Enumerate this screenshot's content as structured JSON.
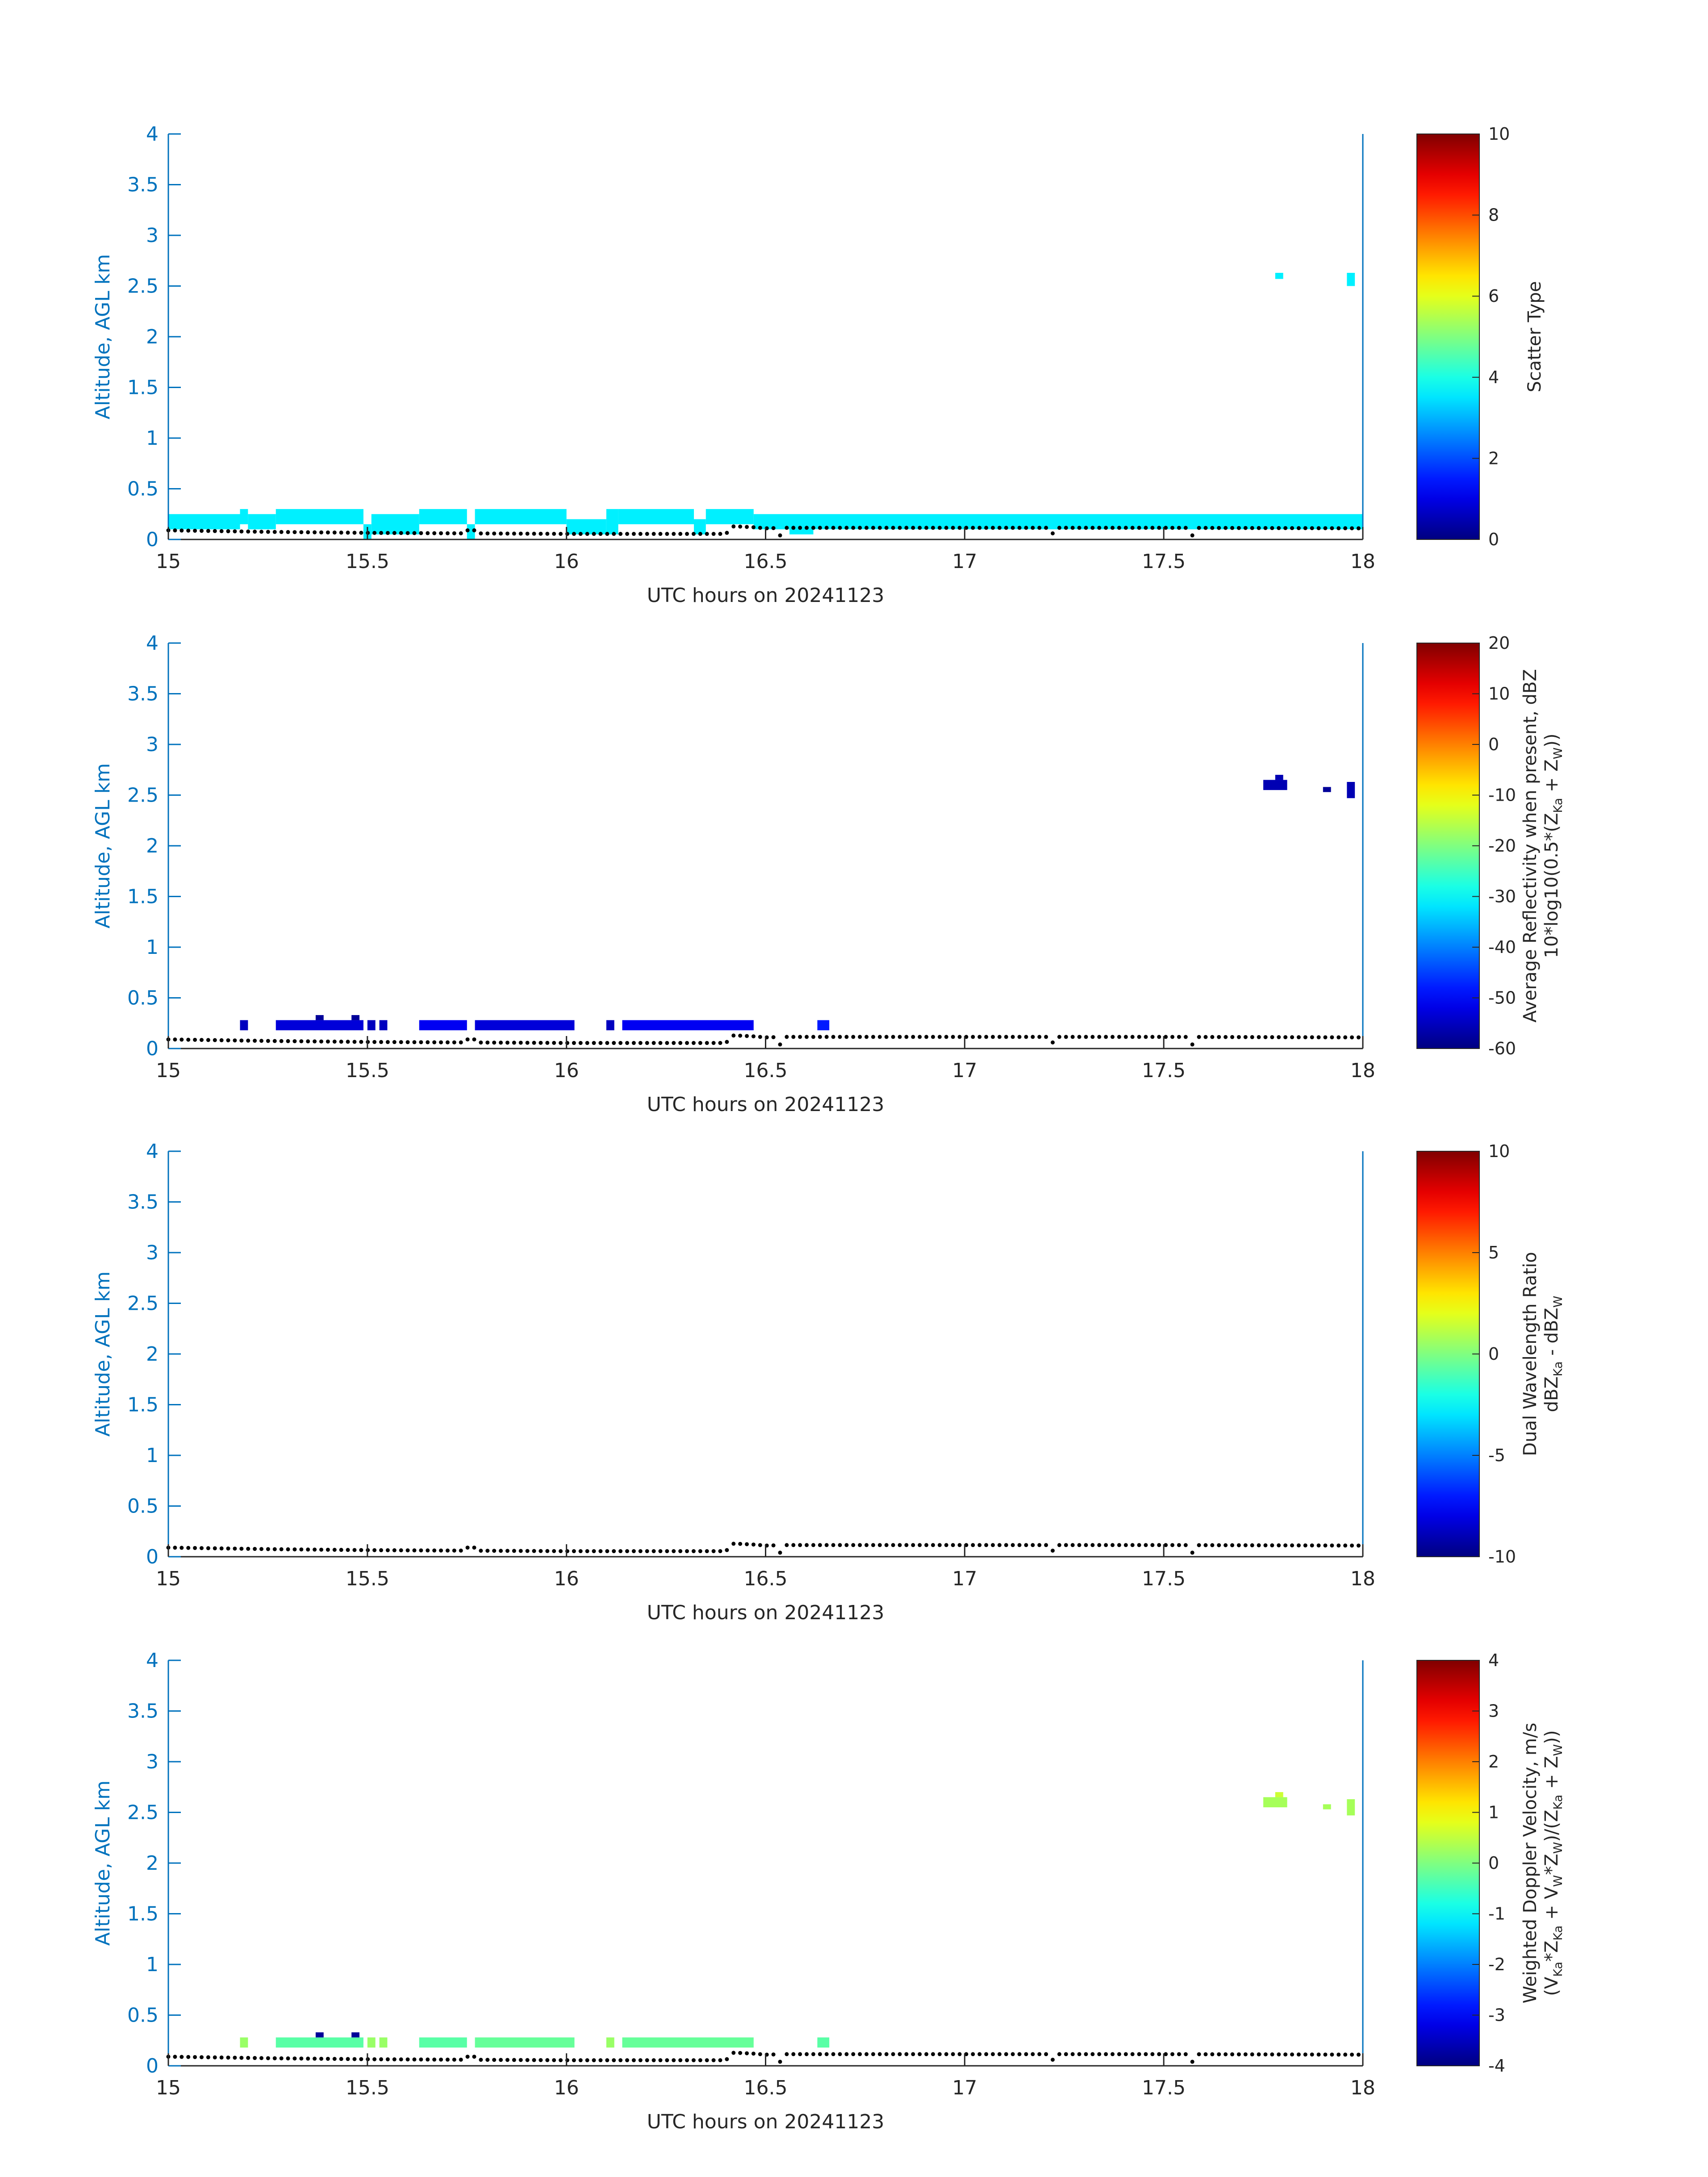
{
  "chart_data": [
    {
      "type": "heatmap",
      "xlabel": "UTC hours on 20241123",
      "ylabel": "Altitude, AGL km",
      "xlim": [
        15,
        18
      ],
      "ylim": [
        0,
        4
      ],
      "xticks": [
        "15",
        "15.5",
        "16",
        "16.5",
        "17",
        "17.5",
        "18"
      ],
      "yticks": [
        "0",
        "0.5",
        "1",
        "1.5",
        "2",
        "2.5",
        "3",
        "3.5",
        "4"
      ],
      "colorbar": {
        "label": "Scatter Type",
        "label2": "",
        "ticks": [
          "0",
          "2",
          "4",
          "6",
          "8",
          "10"
        ],
        "range": [
          0,
          10
        ],
        "colormap": "jet"
      },
      "cells": [
        {
          "x0": 15.0,
          "x1": 15.18,
          "y0": 0.1,
          "y1": 0.25,
          "value": 3.6
        },
        {
          "x0": 15.18,
          "x1": 15.2,
          "y0": 0.15,
          "y1": 0.3,
          "value": 3.6
        },
        {
          "x0": 15.2,
          "x1": 15.27,
          "y0": 0.1,
          "y1": 0.25,
          "value": 3.6
        },
        {
          "x0": 15.27,
          "x1": 15.49,
          "y0": 0.15,
          "y1": 0.3,
          "value": 3.6
        },
        {
          "x0": 15.49,
          "x1": 15.51,
          "y0": 0.0,
          "y1": 0.15,
          "value": 3.6
        },
        {
          "x0": 15.51,
          "x1": 15.63,
          "y0": 0.05,
          "y1": 0.25,
          "value": 3.6
        },
        {
          "x0": 15.63,
          "x1": 15.75,
          "y0": 0.15,
          "y1": 0.3,
          "value": 3.6
        },
        {
          "x0": 15.75,
          "x1": 15.77,
          "y0": 0.0,
          "y1": 0.15,
          "value": 3.6
        },
        {
          "x0": 15.77,
          "x1": 16.0,
          "y0": 0.15,
          "y1": 0.3,
          "value": 3.6
        },
        {
          "x0": 16.0,
          "x1": 16.1,
          "y0": 0.05,
          "y1": 0.2,
          "value": 3.6
        },
        {
          "x0": 16.1,
          "x1": 16.13,
          "y0": 0.05,
          "y1": 0.3,
          "value": 3.6
        },
        {
          "x0": 16.13,
          "x1": 16.32,
          "y0": 0.15,
          "y1": 0.3,
          "value": 3.6
        },
        {
          "x0": 16.32,
          "x1": 16.35,
          "y0": 0.05,
          "y1": 0.2,
          "value": 3.6
        },
        {
          "x0": 16.35,
          "x1": 16.47,
          "y0": 0.15,
          "y1": 0.3,
          "value": 3.6
        },
        {
          "x0": 16.47,
          "x1": 16.56,
          "y0": 0.1,
          "y1": 0.25,
          "value": 3.6
        },
        {
          "x0": 16.56,
          "x1": 16.62,
          "y0": 0.05,
          "y1": 0.25,
          "value": 3.6
        },
        {
          "x0": 16.62,
          "x1": 18.0,
          "y0": 0.1,
          "y1": 0.25,
          "value": 3.6
        },
        {
          "x0": 17.78,
          "x1": 17.8,
          "y0": 2.57,
          "y1": 2.63,
          "value": 3.6
        },
        {
          "x0": 17.96,
          "x1": 17.98,
          "y0": 2.5,
          "y1": 2.63,
          "value": 3.6
        }
      ]
    },
    {
      "type": "heatmap",
      "xlabel": "UTC hours on 20241123",
      "ylabel": "Altitude, AGL km",
      "xlim": [
        15,
        18
      ],
      "ylim": [
        0,
        4
      ],
      "xticks": [
        "15",
        "15.5",
        "16",
        "16.5",
        "17",
        "17.5",
        "18"
      ],
      "yticks": [
        "0",
        "0.5",
        "1",
        "1.5",
        "2",
        "2.5",
        "3",
        "3.5",
        "4"
      ],
      "colorbar": {
        "label": "Average Reflectivity when present, dBZ",
        "label2": "10*log10(0.5*(Z",
        "label2_parts": [
          "10*log10(0.5*(Z",
          "Ka",
          " + Z",
          "W",
          "))"
        ],
        "ticks": [
          "-60",
          "-50",
          "-40",
          "-30",
          "-20",
          "-10",
          "0",
          "10",
          "20"
        ],
        "range": [
          -60,
          20
        ],
        "colormap": "jet"
      },
      "cells": [
        {
          "x0": 15.18,
          "x1": 15.2,
          "y0": 0.18,
          "y1": 0.28,
          "value": -55
        },
        {
          "x0": 15.27,
          "x1": 15.49,
          "y0": 0.18,
          "y1": 0.28,
          "value": -53
        },
        {
          "x0": 15.37,
          "x1": 15.39,
          "y0": 0.28,
          "y1": 0.33,
          "value": -58
        },
        {
          "x0": 15.46,
          "x1": 15.48,
          "y0": 0.28,
          "y1": 0.33,
          "value": -58
        },
        {
          "x0": 15.5,
          "x1": 15.52,
          "y0": 0.18,
          "y1": 0.28,
          "value": -55
        },
        {
          "x0": 15.53,
          "x1": 15.55,
          "y0": 0.18,
          "y1": 0.28,
          "value": -55
        },
        {
          "x0": 15.63,
          "x1": 15.75,
          "y0": 0.18,
          "y1": 0.28,
          "value": -51
        },
        {
          "x0": 15.77,
          "x1": 16.02,
          "y0": 0.18,
          "y1": 0.28,
          "value": -53
        },
        {
          "x0": 16.1,
          "x1": 16.12,
          "y0": 0.18,
          "y1": 0.28,
          "value": -55
        },
        {
          "x0": 16.14,
          "x1": 16.47,
          "y0": 0.18,
          "y1": 0.28,
          "value": -51
        },
        {
          "x0": 16.63,
          "x1": 16.66,
          "y0": 0.18,
          "y1": 0.28,
          "value": -48
        },
        {
          "x0": 17.75,
          "x1": 17.81,
          "y0": 2.55,
          "y1": 2.65,
          "value": -56
        },
        {
          "x0": 17.78,
          "x1": 17.8,
          "y0": 2.65,
          "y1": 2.7,
          "value": -56
        },
        {
          "x0": 17.9,
          "x1": 17.92,
          "y0": 2.53,
          "y1": 2.58,
          "value": -58
        },
        {
          "x0": 17.96,
          "x1": 17.98,
          "y0": 2.47,
          "y1": 2.63,
          "value": -56
        }
      ]
    },
    {
      "type": "heatmap",
      "xlabel": "UTC hours on 20241123",
      "ylabel": "Altitude, AGL km",
      "xlim": [
        15,
        18
      ],
      "ylim": [
        0,
        4
      ],
      "xticks": [
        "15",
        "15.5",
        "16",
        "16.5",
        "17",
        "17.5",
        "18"
      ],
      "yticks": [
        "0",
        "0.5",
        "1",
        "1.5",
        "2",
        "2.5",
        "3",
        "3.5",
        "4"
      ],
      "colorbar": {
        "label": "Dual Wavelength Ratio",
        "label2": "dBZ",
        "label2_parts": [
          "dBZ",
          "Ka",
          " - dBZ",
          "W",
          ""
        ],
        "ticks": [
          "-10",
          "-5",
          "0",
          "5",
          "10"
        ],
        "range": [
          -10,
          10
        ],
        "colormap": "jet"
      },
      "cells": []
    },
    {
      "type": "heatmap",
      "xlabel": "UTC hours on 20241123",
      "ylabel": "Altitude, AGL km",
      "xlim": [
        15,
        18
      ],
      "ylim": [
        0,
        4
      ],
      "xticks": [
        "15",
        "15.5",
        "16",
        "16.5",
        "17",
        "17.5",
        "18"
      ],
      "yticks": [
        "0",
        "0.5",
        "1",
        "1.5",
        "2",
        "2.5",
        "3",
        "3.5",
        "4"
      ],
      "colorbar": {
        "label": "Weighted Doppler Velocity, m/s",
        "label2": "(V",
        "label2_parts": [
          "(V",
          "Ka",
          "*Z",
          "Ka",
          " + V",
          "W",
          "*Z",
          "W",
          ")/(Z",
          "Ka",
          " + Z",
          "W",
          "))"
        ],
        "ticks": [
          "-4",
          "-3",
          "-2",
          "-1",
          "0",
          "1",
          "2",
          "3",
          "4"
        ],
        "range": [
          -4,
          4
        ],
        "colormap": "jet"
      },
      "cells": [
        {
          "x0": 15.18,
          "x1": 15.2,
          "y0": 0.18,
          "y1": 0.28,
          "value": 0.2
        },
        {
          "x0": 15.27,
          "x1": 15.49,
          "y0": 0.18,
          "y1": 0.28,
          "value": -0.3
        },
        {
          "x0": 15.37,
          "x1": 15.39,
          "y0": 0.28,
          "y1": 0.33,
          "value": -3.8
        },
        {
          "x0": 15.46,
          "x1": 15.48,
          "y0": 0.28,
          "y1": 0.33,
          "value": -3.8
        },
        {
          "x0": 15.5,
          "x1": 15.52,
          "y0": 0.18,
          "y1": 0.28,
          "value": 0.2
        },
        {
          "x0": 15.53,
          "x1": 15.55,
          "y0": 0.18,
          "y1": 0.28,
          "value": 0.2
        },
        {
          "x0": 15.63,
          "x1": 15.75,
          "y0": 0.18,
          "y1": 0.28,
          "value": -0.3
        },
        {
          "x0": 15.77,
          "x1": 16.02,
          "y0": 0.18,
          "y1": 0.28,
          "value": -0.2
        },
        {
          "x0": 16.1,
          "x1": 16.12,
          "y0": 0.18,
          "y1": 0.28,
          "value": 0.2
        },
        {
          "x0": 16.14,
          "x1": 16.47,
          "y0": 0.18,
          "y1": 0.28,
          "value": -0.2
        },
        {
          "x0": 16.63,
          "x1": 16.66,
          "y0": 0.18,
          "y1": 0.28,
          "value": -0.3
        },
        {
          "x0": 17.75,
          "x1": 17.81,
          "y0": 2.55,
          "y1": 2.65,
          "value": 0.3
        },
        {
          "x0": 17.78,
          "x1": 17.8,
          "y0": 2.65,
          "y1": 2.7,
          "value": 0.6
        },
        {
          "x0": 17.9,
          "x1": 17.92,
          "y0": 2.53,
          "y1": 2.58,
          "value": 0.3
        },
        {
          "x0": 17.96,
          "x1": 17.98,
          "y0": 2.47,
          "y1": 2.63,
          "value": 0.3
        }
      ]
    }
  ],
  "surface_track": {
    "series_color": "#000000",
    "points": [
      [
        15.0,
        0.09
      ],
      [
        15.25,
        0.075
      ],
      [
        15.5,
        0.065
      ],
      [
        15.75,
        0.06
      ],
      [
        16.0,
        0.055
      ],
      [
        16.25,
        0.055
      ],
      [
        16.4,
        0.055
      ],
      [
        16.42,
        0.13
      ],
      [
        16.47,
        0.12
      ],
      [
        16.5,
        0.11
      ],
      [
        16.55,
        0.115
      ],
      [
        17.0,
        0.115
      ],
      [
        17.5,
        0.115
      ],
      [
        18.0,
        0.11
      ]
    ],
    "dips": [
      [
        15.76,
        0.09
      ],
      [
        16.53,
        0.04
      ],
      [
        17.22,
        0.06
      ],
      [
        17.57,
        0.04
      ]
    ]
  },
  "colors": {
    "axis_blue": "#0072bd",
    "text_dark": "#262626"
  }
}
